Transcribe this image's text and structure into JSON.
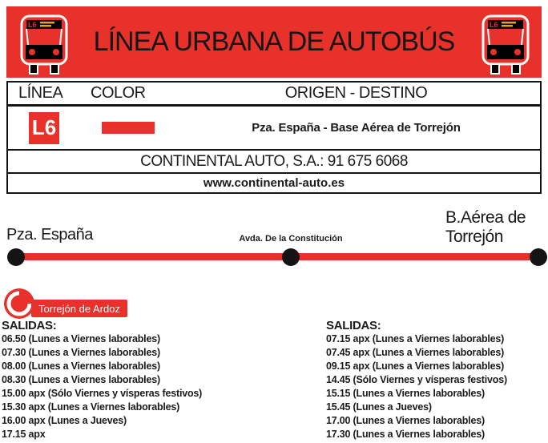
{
  "colors": {
    "red": "#e8312a",
    "ink": "#141414"
  },
  "banner": {
    "title": "LÍNEA URBANA DE AUTOBÚS",
    "bus_sign": "L6"
  },
  "info_table": {
    "headers": {
      "line": "LÍNEA",
      "color": "COLOR",
      "origin_destination": "ORIGEN - DESTINO"
    },
    "line_code": "L6",
    "route": "Pza. España - Base Aérea de Torrejón",
    "operator": "CONTINENTAL AUTO, S.A.: 91 675 6068",
    "website": "www.continental-auto.es"
  },
  "route_diagram": {
    "stops": [
      {
        "name": "Pza. España"
      },
      {
        "name": "Avda. De la Constitución"
      },
      {
        "name": "B.Aérea de Torrejón"
      }
    ]
  },
  "municipality_badge": {
    "label": "Torrejón de Ardoz"
  },
  "schedules": {
    "outbound": {
      "heading": "SALIDAS:",
      "items": [
        "06.50 (Lunes a Viernes laborables)",
        "07.30 (Lunes a Viernes laborables)",
        "08.00 (Lunes a Viernes laborables)",
        "08.30 (Lunes a Viernes laborables)",
        "15.00 apx (Sólo Viernes y vísperas festivos)",
        "15.30 apx (Lunes a Viernes laborables)",
        "16.00 apx (Lunes a Jueves)",
        "17.15 apx"
      ]
    },
    "return": {
      "heading": "SALIDAS:",
      "items": [
        "07.15 apx (Lunes a Viernes laborables)",
        "07.45 apx (Lunes a Viernes laborables)",
        "09.15 apx (Lunes a Viernes laborables)",
        "14.45 (Sólo Viernes y vísperas festivos)",
        "15.15 (Lunes a Viernes laborables)",
        "15.45 (Lunes a Jueves)",
        "17.00 (Lunes a Viernes laborables)",
        "17.30 (Lunes a Viernes laborables)"
      ]
    }
  }
}
